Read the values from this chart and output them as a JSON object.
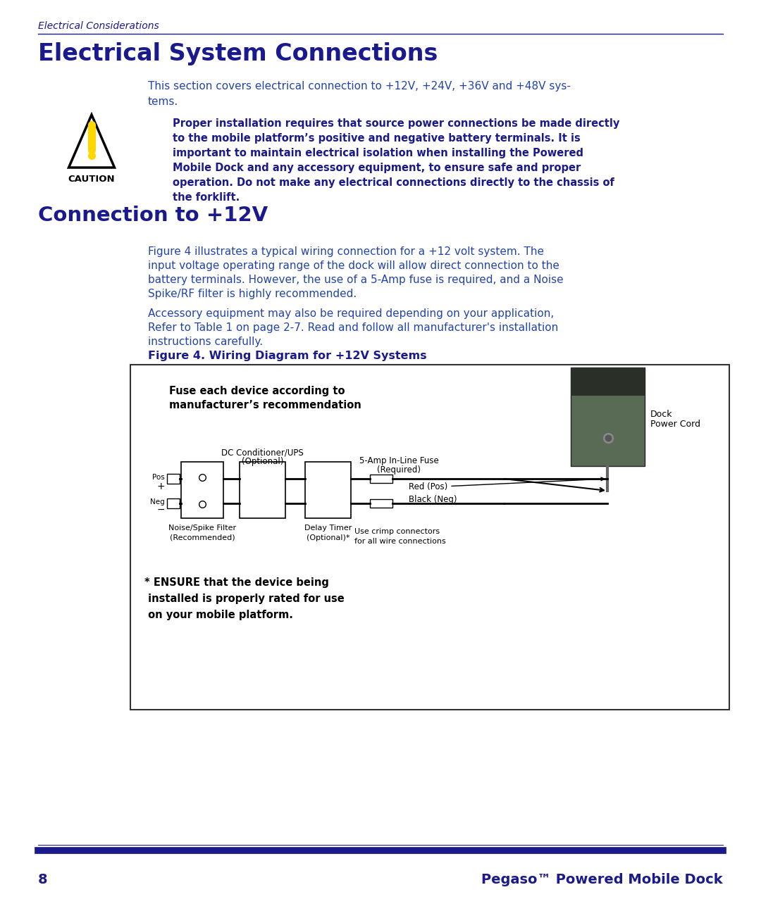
{
  "bg_color": "#ffffff",
  "dark_blue": "#1a1a8c",
  "body_blue": "#2244aa",
  "page_width": 10.8,
  "page_height": 13.11,
  "top_label": "Electrical Considerations",
  "main_title": "Electrical System Connections",
  "section_title": "Connection to +12V",
  "intro_line1": "This section covers electrical connection to +12V, +24V, +36V and +48V sys-",
  "intro_line2": "tems.",
  "caution_lines": [
    "Proper installation requires that source power connections be made directly",
    "to the mobile platform’s positive and negative battery terminals. It is",
    "important to maintain electrical isolation when installing the Powered",
    "Mobile Dock and any accessory equipment, to ensure safe and proper",
    "operation. Do not make any electrical connections directly to the chassis of",
    "the forklift."
  ],
  "caution_label": "CAUTION",
  "para1_lines": [
    "Figure 4 illustrates a typical wiring connection for a +12 volt system. The",
    "input voltage operating range of the dock will allow direct connection to the",
    "battery terminals. However, the use of a 5-Amp fuse is required, and a Noise",
    "Spike/RF filter is highly recommended."
  ],
  "para2_lines": [
    "Accessory equipment may also be required depending on your application,",
    "Refer to Table 1 on page 2-7. Read and follow all manufacturer's installation",
    "instructions carefully."
  ],
  "figure_title": "Figure 4. Wiring Diagram for +12V Systems",
  "page_number": "8",
  "footer_text": "Pegaso™ Powered Mobile Dock",
  "caution_text_color": "#1a1a8c",
  "black": "#000000"
}
